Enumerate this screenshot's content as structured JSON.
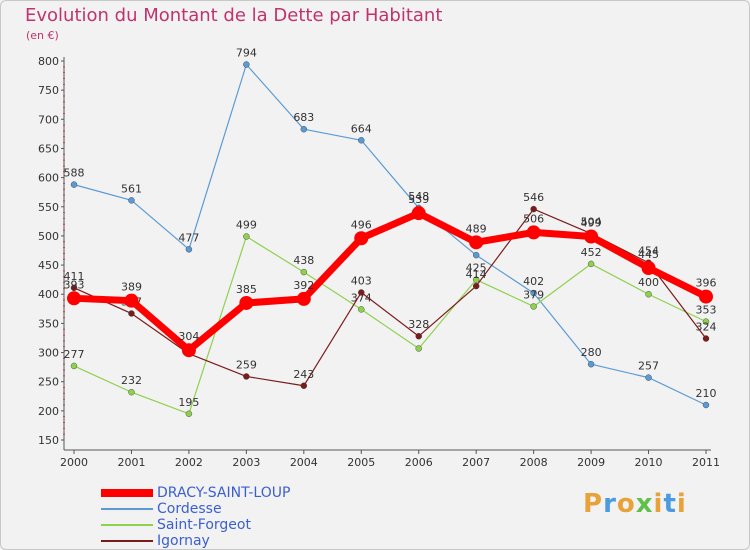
{
  "header": {
    "title": "Evolution du Montant de la Dette par Habitant",
    "unit": "(en €)"
  },
  "logo_text": "Proxiti",
  "chart_data": {
    "type": "line",
    "title": "Evolution du Montant de la Dette par Habitant",
    "ylabel": "(en €)",
    "xlabel": "",
    "x": [
      "2000",
      "2001",
      "2002",
      "2003",
      "2004",
      "2005",
      "2006",
      "2007",
      "2008",
      "2009",
      "2010",
      "2011"
    ],
    "ylim": [
      150,
      800
    ],
    "yticks": [
      150,
      200,
      250,
      300,
      350,
      400,
      450,
      500,
      550,
      600,
      650,
      700,
      750,
      800
    ],
    "grid": false,
    "legend_position": "bottom-left",
    "series": [
      {
        "name": "DRACY-SAINT-LOUP",
        "color": "#ff0000",
        "values": [
          393,
          389,
          304,
          385,
          392,
          496,
          539,
          489,
          506,
          499,
          445,
          396
        ],
        "labels": [
          "393",
          "389",
          "304",
          "385",
          "392",
          "496",
          "539",
          "489",
          "506",
          "499",
          "445",
          "396"
        ]
      },
      {
        "name": "Cordesse",
        "color": "#5b9bd5",
        "values": [
          588,
          561,
          477,
          794,
          683,
          664,
          548,
          467,
          402,
          280,
          257,
          210
        ],
        "labels": [
          "588",
          "561",
          "477",
          "794",
          "683",
          "664",
          "548",
          "",
          "402",
          "280",
          "257",
          "210"
        ]
      },
      {
        "name": "Saint-Forgeot",
        "color": "#8fd14f",
        "values": [
          277,
          232,
          195,
          499,
          438,
          374,
          307,
          425,
          379,
          452,
          400,
          353
        ],
        "labels": [
          "277",
          "232",
          "195",
          "499",
          "438",
          "374",
          "",
          "425",
          "379",
          "452",
          "400",
          "353"
        ]
      },
      {
        "name": "Igornay",
        "color": "#7b1c1c",
        "values": [
          411,
          367,
          298,
          259,
          243,
          403,
          328,
          414,
          546,
          504,
          454,
          324
        ],
        "labels": [
          "411",
          "367",
          "",
          "259",
          "243",
          "403",
          "328",
          "414",
          "546",
          "504",
          "454",
          "324"
        ]
      }
    ]
  }
}
